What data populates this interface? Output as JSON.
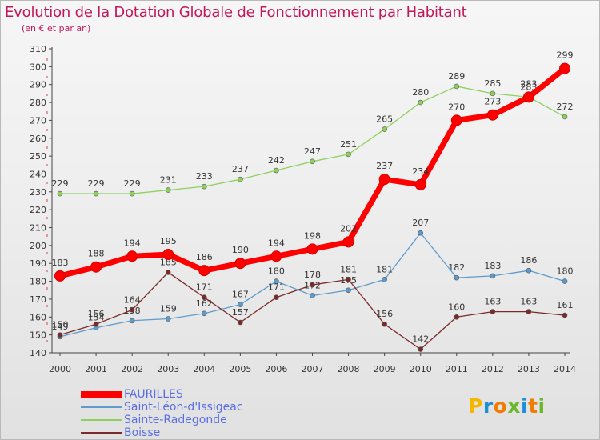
{
  "title": "Evolution de la Dotation Globale de Fonctionnement par Habitant",
  "subtitle": "(en € et par an)",
  "brand": {
    "letters": [
      "P",
      "r",
      "o",
      "x",
      "i",
      "t",
      "i"
    ],
    "colors": [
      "#f2b800",
      "#1d8fd6",
      "#f07d00",
      "#6ab92d",
      "#1d8fd6",
      "#f07d00",
      "#6ab92d"
    ]
  },
  "chart_data": {
    "type": "line",
    "x": [
      2000,
      2001,
      2002,
      2003,
      2004,
      2005,
      2006,
      2007,
      2008,
      2009,
      2010,
      2011,
      2012,
      2013,
      2014
    ],
    "ylim": [
      140,
      310
    ],
    "yticks": [
      140,
      150,
      160,
      170,
      180,
      190,
      200,
      210,
      220,
      230,
      240,
      250,
      260,
      270,
      280,
      290,
      300,
      310
    ],
    "grid": false,
    "legend_position": "bottom-left",
    "series": [
      {
        "name": "Sainte-Radegonde",
        "color": "#8ed05e",
        "values": [
          229,
          229,
          229,
          231,
          233,
          237,
          242,
          247,
          251,
          265,
          280,
          289,
          285,
          283,
          272
        ]
      },
      {
        "name": "Saint-Léon-d'Issigeac",
        "color": "#5e9bcc",
        "values": [
          149,
          154,
          158,
          159,
          162,
          167,
          180,
          172,
          175,
          181,
          207,
          182,
          183,
          186,
          180
        ]
      },
      {
        "name": "Boisse",
        "color": "#7a2a2a",
        "values": [
          150,
          156,
          164,
          185,
          171,
          157,
          171,
          178,
          181,
          156,
          142,
          160,
          163,
          163,
          161
        ]
      },
      {
        "name": "FAURILLES",
        "color": "#ff0000",
        "values": [
          183,
          188,
          194,
          195,
          186,
          190,
          194,
          198,
          202,
          237,
          234,
          270,
          273,
          283,
          299
        ]
      }
    ],
    "legend_order": [
      "FAURILLES",
      "Saint-Léon-d'Issigeac",
      "Sainte-Radegonde",
      "Boisse"
    ]
  }
}
